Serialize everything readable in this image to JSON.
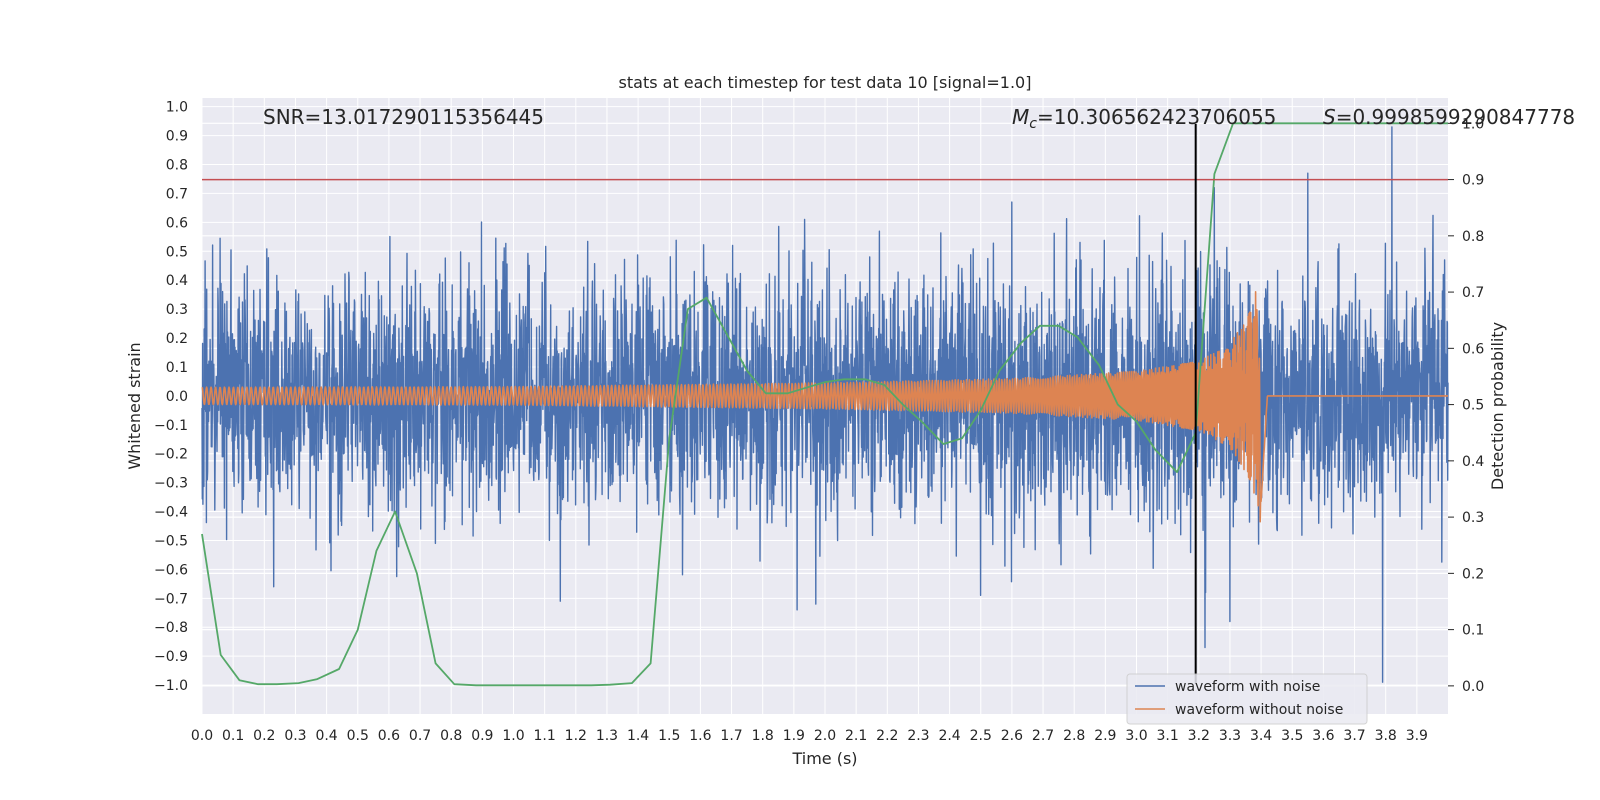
{
  "chart_data": {
    "type": "line",
    "title": "stats at each timestep for test data 10 [signal=1.0]",
    "xlabel": "Time (s)",
    "ylabel": "Whitened strain",
    "y2label": "Detection probability",
    "xlim": [
      0.0,
      4.0
    ],
    "ylim": [
      -1.1,
      1.03
    ],
    "y2lim": [
      -0.05,
      1.045
    ],
    "xticks": [
      "0.0",
      "0.1",
      "0.2",
      "0.3",
      "0.4",
      "0.5",
      "0.6",
      "0.7",
      "0.8",
      "0.9",
      "1.0",
      "1.1",
      "1.2",
      "1.3",
      "1.4",
      "1.5",
      "1.6",
      "1.7",
      "1.8",
      "1.9",
      "2.0",
      "2.1",
      "2.2",
      "2.3",
      "2.4",
      "2.5",
      "2.6",
      "2.7",
      "2.8",
      "2.9",
      "3.0",
      "3.1",
      "3.2",
      "3.3",
      "3.4",
      "3.5",
      "3.6",
      "3.7",
      "3.8",
      "3.9"
    ],
    "yticks": [
      "1.0",
      "0.9",
      "0.8",
      "0.7",
      "0.6",
      "0.5",
      "0.4",
      "0.3",
      "0.2",
      "0.1",
      "0.0",
      "−0.1",
      "−0.2",
      "−0.3",
      "−0.4",
      "−0.5",
      "−0.6",
      "−0.7",
      "−0.8",
      "−0.9",
      "−1.0"
    ],
    "y2ticks": [
      "0.0",
      "0.1",
      "0.2",
      "0.3",
      "0.4",
      "0.5",
      "0.6",
      "0.7",
      "0.8",
      "0.9",
      "1.0"
    ],
    "grid": true,
    "background": "#eaeaf2",
    "legend_position": "lower-right",
    "annotations": {
      "snr": "SNR=13.017290115356445",
      "mc_symbol": "M",
      "mc_sub": "c",
      "mc_value": "=10.306562423706055",
      "s_symbol": "S",
      "s_value": "=0.9998599290847778"
    },
    "threshold": {
      "axis": "y2",
      "value": 0.9,
      "color": "#c44e52"
    },
    "marker": {
      "x": 3.19,
      "color": "#000000"
    },
    "series": [
      {
        "name": "waveform with noise",
        "color": "#4c72b0",
        "kind": "noise",
        "seed": 10,
        "envelope_x": [
          0.0,
          0.2,
          0.4,
          0.6,
          0.8,
          1.0,
          1.2,
          1.4,
          1.5,
          1.6,
          1.8,
          2.0,
          2.2,
          2.4,
          2.6,
          2.8,
          3.0,
          3.2,
          3.4,
          3.6,
          3.8,
          4.0
        ],
        "envelope_amp": [
          0.21,
          0.21,
          0.2,
          0.22,
          0.2,
          0.21,
          0.2,
          0.21,
          0.2,
          0.21,
          0.2,
          0.21,
          0.2,
          0.21,
          0.22,
          0.21,
          0.21,
          0.23,
          0.21,
          0.2,
          0.2,
          0.2
        ],
        "spikes": [
          [
            3.82,
            0.93
          ],
          [
            3.79,
            -0.99
          ],
          [
            3.22,
            -0.87
          ],
          [
            3.55,
            0.77
          ],
          [
            3.25,
            0.72
          ],
          [
            2.5,
            -0.69
          ],
          [
            1.91,
            -0.74
          ],
          [
            1.97,
            -0.72
          ],
          [
            3.3,
            -0.78
          ],
          [
            0.23,
            -0.66
          ],
          [
            1.15,
            -0.71
          ],
          [
            2.6,
            0.67
          ]
        ]
      },
      {
        "name": "waveform without noise",
        "color": "#dd8452",
        "kind": "chirp",
        "t_merge": 3.4,
        "amp_x": [
          0.0,
          1.0,
          2.0,
          2.6,
          3.0,
          3.2,
          3.3,
          3.37,
          3.4,
          3.42,
          4.0
        ],
        "amp_y": [
          0.03,
          0.032,
          0.045,
          0.06,
          0.085,
          0.12,
          0.18,
          0.3,
          0.45,
          0.0,
          0.0
        ]
      },
      {
        "name": "",
        "color": "#55a868",
        "kind": "probability",
        "axis": "y2",
        "x": [
          0.0,
          0.06,
          0.12,
          0.18,
          0.24,
          0.31,
          0.37,
          0.44,
          0.5,
          0.56,
          0.62,
          0.69,
          0.75,
          0.81,
          0.88,
          0.94,
          1.0,
          1.06,
          1.13,
          1.19,
          1.25,
          1.31,
          1.38,
          1.44,
          1.5,
          1.56,
          1.62,
          1.69,
          1.75,
          1.81,
          1.88,
          1.94,
          2.0,
          2.06,
          2.13,
          2.19,
          2.25,
          2.31,
          2.38,
          2.44,
          2.5,
          2.56,
          2.63,
          2.69,
          2.75,
          2.81,
          2.88,
          2.94,
          3.0,
          3.06,
          3.13,
          3.19,
          3.25,
          3.31,
          3.38,
          3.44,
          3.5,
          3.56,
          3.63,
          3.69,
          3.75,
          3.81,
          3.88,
          3.94,
          4.0
        ],
        "y": [
          0.27,
          0.055,
          0.01,
          0.003,
          0.003,
          0.005,
          0.012,
          0.03,
          0.1,
          0.24,
          0.31,
          0.2,
          0.04,
          0.003,
          0.001,
          0.001,
          0.001,
          0.001,
          0.001,
          0.001,
          0.001,
          0.002,
          0.005,
          0.04,
          0.44,
          0.67,
          0.69,
          0.62,
          0.56,
          0.52,
          0.52,
          0.53,
          0.54,
          0.545,
          0.545,
          0.535,
          0.5,
          0.47,
          0.43,
          0.44,
          0.49,
          0.56,
          0.61,
          0.64,
          0.64,
          0.62,
          0.57,
          0.5,
          0.47,
          0.42,
          0.38,
          0.45,
          0.91,
          1.0,
          1.0,
          1.0,
          1.0,
          1.0,
          1.0,
          1.0,
          1.0,
          1.0,
          1.0,
          1.0,
          1.0
        ]
      }
    ]
  }
}
